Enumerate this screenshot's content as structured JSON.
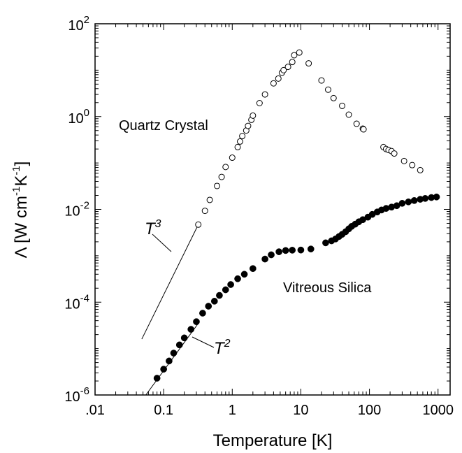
{
  "chart_data": {
    "type": "scatter",
    "title": "",
    "xlabel": "Temperature [K]",
    "ylabel": {
      "main": "Λ [W cm",
      "exp1": "-1",
      "mid": "K",
      "exp2": "-1",
      "end": "]"
    },
    "xscale": "log",
    "yscale": "log",
    "xlim": [
      0.01,
      1500
    ],
    "ylim": [
      1e-06,
      100
    ],
    "x_ticks": [
      {
        "value": 0.01,
        "label": ".01"
      },
      {
        "value": 0.1,
        "label": "0.1"
      },
      {
        "value": 1,
        "label": "1"
      },
      {
        "value": 10,
        "label": "10"
      },
      {
        "value": 100,
        "label": "100"
      },
      {
        "value": 1000,
        "label": "1000"
      }
    ],
    "y_ticks": [
      {
        "value": 1e-06,
        "base": "10",
        "exp": "-6"
      },
      {
        "value": 0.0001,
        "base": "10",
        "exp": "-4"
      },
      {
        "value": 0.01,
        "base": "10",
        "exp": "-2"
      },
      {
        "value": 1,
        "base": "10",
        "exp": "0"
      },
      {
        "value": 100,
        "base": "10",
        "exp": "2"
      }
    ],
    "grid": false,
    "series": [
      {
        "name": "Quartz Crystal",
        "marker": "open-circle",
        "points": [
          [
            0.32,
            0.0047
          ],
          [
            0.4,
            0.0093
          ],
          [
            0.47,
            0.016
          ],
          [
            0.6,
            0.032
          ],
          [
            0.7,
            0.05
          ],
          [
            0.8,
            0.082
          ],
          [
            1.0,
            0.13
          ],
          [
            1.2,
            0.22
          ],
          [
            1.3,
            0.29
          ],
          [
            1.4,
            0.38
          ],
          [
            1.6,
            0.5
          ],
          [
            1.7,
            0.63
          ],
          [
            1.9,
            0.85
          ],
          [
            2.0,
            1.05
          ],
          [
            2.5,
            1.95
          ],
          [
            3.0,
            3.0
          ],
          [
            4.0,
            5.2
          ],
          [
            4.7,
            6.6
          ],
          [
            5.3,
            8.8
          ],
          [
            5.6,
            10.0
          ],
          [
            6.5,
            11.8
          ],
          [
            7.5,
            15.0
          ],
          [
            8.0,
            21.0
          ],
          [
            9.5,
            24.0
          ],
          [
            13.0,
            14.0
          ],
          [
            20.0,
            6.0
          ],
          [
            25.0,
            3.8
          ],
          [
            30.0,
            2.5
          ],
          [
            40.0,
            1.7
          ],
          [
            50.0,
            1.1
          ],
          [
            65.0,
            0.7
          ],
          [
            80.0,
            0.55
          ],
          [
            82.0,
            0.53
          ],
          [
            160.0,
            0.22
          ],
          [
            175.0,
            0.2
          ],
          [
            190.0,
            0.19
          ],
          [
            210.0,
            0.18
          ],
          [
            230.0,
            0.16
          ],
          [
            320.0,
            0.11
          ],
          [
            420.0,
            0.09
          ],
          [
            550.0,
            0.07
          ]
        ]
      },
      {
        "name": "Vitreous Silica",
        "marker": "filled-circle",
        "points": [
          [
            0.08,
            2.3e-06
          ],
          [
            0.1,
            3.6e-06
          ],
          [
            0.12,
            5.4e-06
          ],
          [
            0.14,
            8e-06
          ],
          [
            0.17,
            1.2e-05
          ],
          [
            0.2,
            1.7e-05
          ],
          [
            0.25,
            2.6e-05
          ],
          [
            0.3,
            3.8e-05
          ],
          [
            0.37,
            5.8e-05
          ],
          [
            0.45,
            8.2e-05
          ],
          [
            0.55,
            0.000105
          ],
          [
            0.65,
            0.00014
          ],
          [
            0.8,
            0.000185
          ],
          [
            0.95,
            0.00024
          ],
          [
            1.2,
            0.00032
          ],
          [
            1.5,
            0.0004
          ],
          [
            2.0,
            0.00053
          ],
          [
            3.0,
            0.00085
          ],
          [
            3.7,
            0.00105
          ],
          [
            4.8,
            0.00122
          ],
          [
            6.0,
            0.0013
          ],
          [
            7.5,
            0.00132
          ],
          [
            10.0,
            0.00133
          ],
          [
            14.0,
            0.0014
          ],
          [
            23.0,
            0.0019
          ],
          [
            28.0,
            0.0021
          ],
          [
            32.0,
            0.0023
          ],
          [
            36.0,
            0.0026
          ],
          [
            40.0,
            0.0029
          ],
          [
            45.0,
            0.0033
          ],
          [
            50.0,
            0.0038
          ],
          [
            55.0,
            0.0043
          ],
          [
            62.0,
            0.0048
          ],
          [
            70.0,
            0.0054
          ],
          [
            80.0,
            0.006
          ],
          [
            95.0,
            0.0068
          ],
          [
            110.0,
            0.0078
          ],
          [
            130.0,
            0.0088
          ],
          [
            150.0,
            0.0097
          ],
          [
            175.0,
            0.0105
          ],
          [
            210.0,
            0.0112
          ],
          [
            250.0,
            0.012
          ],
          [
            300.0,
            0.0135
          ],
          [
            370.0,
            0.0145
          ],
          [
            450.0,
            0.0155
          ],
          [
            550.0,
            0.0165
          ],
          [
            650.0,
            0.0172
          ],
          [
            800.0,
            0.018
          ],
          [
            950.0,
            0.0185
          ]
        ]
      }
    ],
    "reference_lines": [
      {
        "label_base": "T",
        "label_exp": "3",
        "x": [
          0.048,
          0.32
        ],
        "y": [
          1.6e-05,
          0.0047
        ]
      },
      {
        "label_base": "T",
        "label_exp": "2",
        "x": [
          0.055,
          0.32
        ],
        "y": [
          1e-06,
          3.5e-05
        ]
      }
    ],
    "annotations": [
      {
        "text": "Quartz Crystal"
      },
      {
        "text": "Vitreous Silica"
      }
    ]
  }
}
